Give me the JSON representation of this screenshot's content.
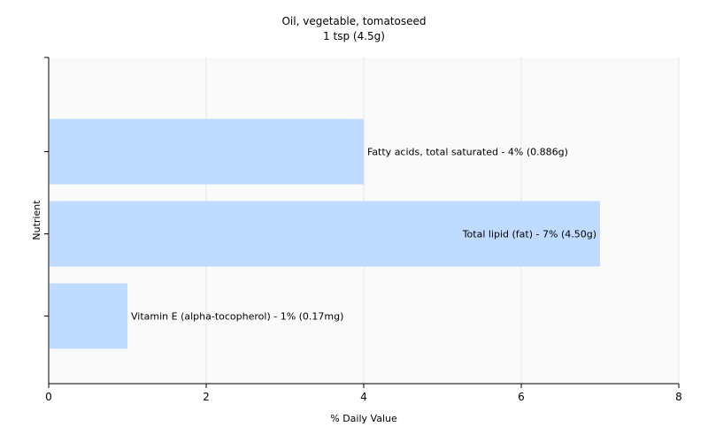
{
  "chart_data": {
    "type": "bar",
    "orientation": "horizontal",
    "title": "Oil, vegetable, tomatoseed",
    "subtitle": "1 tsp (4.5g)",
    "xlabel": "% Daily Value",
    "ylabel": "Nutrient",
    "xlim": [
      0,
      8
    ],
    "xticks": [
      0,
      2,
      4,
      6,
      8
    ],
    "grid": true,
    "categories": [
      "Fatty acids, total saturated",
      "Total lipid (fat)",
      "Vitamin E (alpha-tocopherol)"
    ],
    "values": [
      4,
      7,
      1
    ],
    "data_labels": [
      "Fatty acids, total saturated - 4% (0.886g)",
      "Total lipid (fat) - 7% (4.50g)",
      "Vitamin E (alpha-tocopherol) - 1% (0.17mg)"
    ],
    "colors": {
      "bar": "#bfdbff",
      "plot_background": "#fafafa",
      "grid": "#e6e6e6",
      "axis": "#000000"
    }
  }
}
